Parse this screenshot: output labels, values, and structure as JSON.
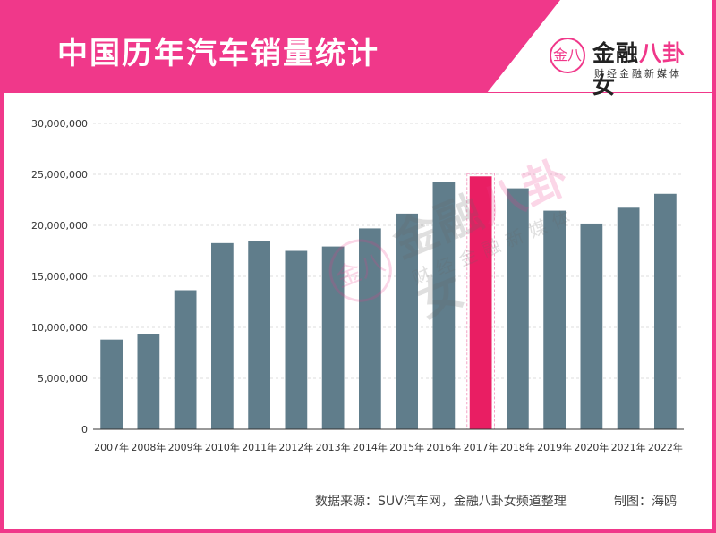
{
  "header": {
    "title": "中国历年汽车销量统计",
    "accent_color": "#f0388a"
  },
  "logo": {
    "circle_char": "金八",
    "main_a": "金融",
    "main_b": "八卦",
    "main_c": "女",
    "sub": "财经金融新媒体"
  },
  "watermark": {
    "circle_char": "金八",
    "main_a": "金融",
    "main_b": "八卦",
    "main_c": "女",
    "sub": "财经金融新媒体"
  },
  "chart_data": {
    "type": "bar",
    "categories": [
      "2007年",
      "2008年",
      "2009年",
      "2010年",
      "2011年",
      "2012年",
      "2013年",
      "2014年",
      "2015年",
      "2016年",
      "2017年",
      "2018年",
      "2019年",
      "2020年",
      "2021年",
      "2022年"
    ],
    "values": [
      8800000,
      9380000,
      13640000,
      18260000,
      18500000,
      17500000,
      17930000,
      19700000,
      21150000,
      24260000,
      24800000,
      23630000,
      21440000,
      20180000,
      21730000,
      23090000
    ],
    "highlight_index": 10,
    "y_ticks": [
      0,
      5000000,
      10000000,
      15000000,
      20000000,
      25000000,
      30000000
    ],
    "y_tick_labels": [
      "0",
      "5,000,000",
      "10,000,000",
      "15,000,000",
      "20,000,000",
      "25,000,000",
      "30,000,000"
    ],
    "ylim": [
      0,
      30000000
    ],
    "bar_color": "#607d8b",
    "highlight_color": "#e91e63",
    "grid": true
  },
  "footer": {
    "source": "数据来源：SUV汽车网，金融八卦女频道整理",
    "credit": "制图：海鸥"
  }
}
